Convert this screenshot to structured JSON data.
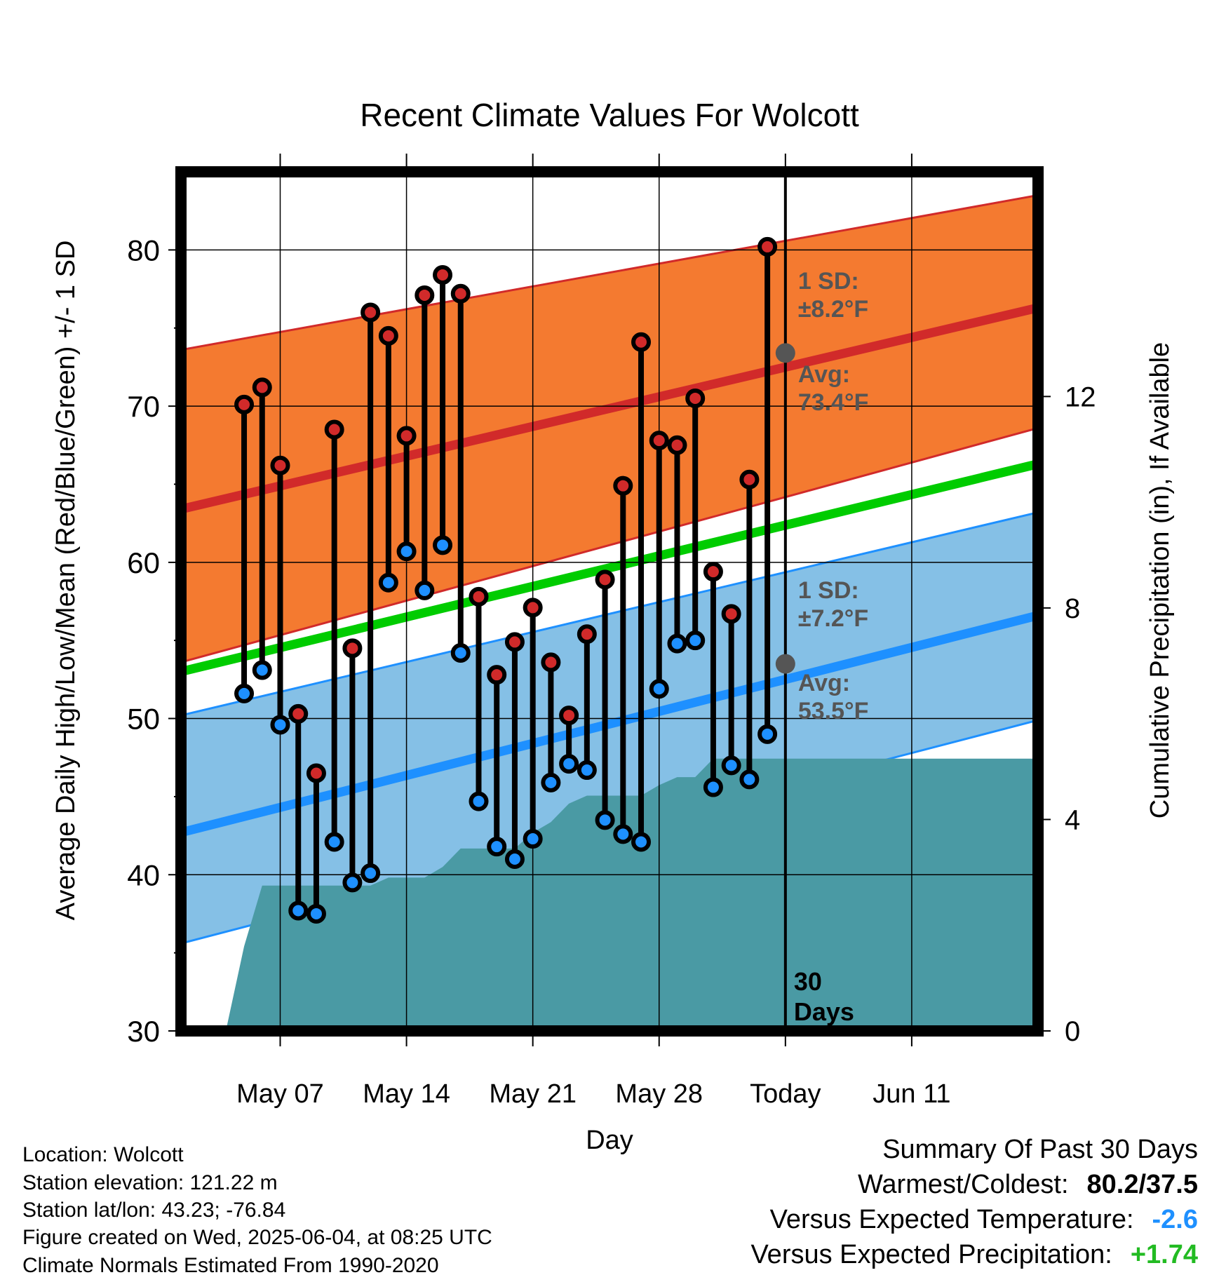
{
  "chart_data": {
    "type": "line",
    "title": "Recent Climate Values For Wolcott",
    "xlabel": "Day",
    "ylabel": "Average Daily High/Low/Mean (Red/Blue/Green) +/- 1 SD",
    "y2label": "Cumulative Precipitation (in), If Available",
    "ylim": [
      30,
      85
    ],
    "y2lim": [
      0,
      16.25
    ],
    "x_range_days": [
      -33.5,
      14
    ],
    "x_ticks": [
      {
        "day": -28,
        "label": "May 07"
      },
      {
        "day": -21,
        "label": "May 14"
      },
      {
        "day": -14,
        "label": "May 21"
      },
      {
        "day": -7,
        "label": "May 28"
      },
      {
        "day": 0,
        "label": "Today"
      },
      {
        "day": 7,
        "label": "Jun 11"
      }
    ],
    "y_ticks": [
      30,
      40,
      50,
      60,
      70,
      80
    ],
    "y2_ticks": [
      0,
      4,
      8,
      12
    ],
    "grid": true,
    "colors": {
      "high": "#d12a2a",
      "low": "#1e90ff",
      "mean": "#00cc00",
      "high_band": "#f47a30",
      "low_band": "#85c0e6",
      "precip": "#4a9aa4",
      "marker_dot": "#555555",
      "annotation": "#555555"
    },
    "series": [
      {
        "name": "Daily High",
        "x": [
          -30,
          -29,
          -28,
          -27,
          -26,
          -25,
          -24,
          -23,
          -22,
          -21,
          -20,
          -19,
          -18,
          -17,
          -16,
          -15,
          -14,
          -13,
          -12,
          -11,
          -10,
          -9,
          -8,
          -7,
          -6,
          -5,
          -4,
          -3,
          -2,
          -1
        ],
        "values": [
          70.1,
          71.2,
          66.2,
          50.3,
          46.5,
          68.5,
          54.5,
          76.0,
          74.5,
          68.1,
          77.1,
          78.4,
          77.2,
          57.8,
          52.8,
          54.9,
          57.1,
          53.6,
          50.2,
          55.4,
          58.9,
          64.9,
          74.1,
          67.8,
          67.5,
          70.5,
          59.4,
          56.7,
          65.3,
          80.2
        ]
      },
      {
        "name": "Daily Low",
        "x": [
          -30,
          -29,
          -28,
          -27,
          -26,
          -25,
          -24,
          -23,
          -22,
          -21,
          -20,
          -19,
          -18,
          -17,
          -16,
          -15,
          -14,
          -13,
          -12,
          -11,
          -10,
          -9,
          -8,
          -7,
          -6,
          -5,
          -4,
          -3,
          -2,
          -1
        ],
        "values": [
          51.6,
          53.1,
          49.6,
          37.7,
          37.5,
          42.1,
          39.5,
          40.1,
          58.7,
          60.7,
          58.2,
          61.1,
          54.2,
          44.7,
          41.8,
          41.0,
          42.3,
          45.9,
          47.1,
          46.7,
          43.5,
          42.6,
          42.1,
          51.9,
          54.8,
          55.0,
          45.6,
          47.0,
          46.1,
          49.0
        ]
      }
    ],
    "normals": {
      "high_mean": {
        "x": [
          -33.5,
          14
        ],
        "values": [
          63.4,
          76.3
        ]
      },
      "high_sd_upper": {
        "x": [
          -33.5,
          14
        ],
        "values": [
          73.6,
          83.5
        ]
      },
      "high_sd_lower": {
        "x": [
          -33.5,
          14
        ],
        "values": [
          53.6,
          68.6
        ]
      },
      "mean_line": {
        "x": [
          -33.5,
          14
        ],
        "values": [
          53.0,
          66.3
        ]
      },
      "low_mean": {
        "x": [
          -33.5,
          14
        ],
        "values": [
          42.7,
          56.6
        ]
      },
      "low_sd_upper": {
        "x": [
          -33.5,
          14
        ],
        "values": [
          50.2,
          63.2
        ]
      },
      "low_sd_lower": {
        "x": [
          -33.5,
          14
        ],
        "values": [
          35.6,
          49.9
        ]
      }
    },
    "precipitation": {
      "x": [
        -33.5,
        -32.9,
        -32,
        -31,
        -30,
        -29,
        -28,
        -27,
        -26,
        -25,
        -24,
        -23,
        -22,
        -21,
        -20,
        -19,
        -18,
        -17,
        -16,
        -15,
        -14,
        -13,
        -12,
        -11,
        -10,
        -9,
        -8,
        -7,
        -6,
        -5,
        -4,
        0,
        14
      ],
      "values": [
        0,
        0,
        0,
        0.02,
        1.6,
        2.75,
        2.75,
        2.75,
        2.75,
        2.75,
        2.75,
        2.75,
        2.9,
        2.9,
        2.9,
        3.1,
        3.45,
        3.45,
        3.45,
        3.45,
        3.75,
        3.95,
        4.3,
        4.45,
        4.45,
        4.45,
        4.45,
        4.65,
        4.8,
        4.8,
        5.15,
        5.15,
        5.15
      ]
    },
    "annotations": {
      "high_sd": [
        "1 SD:",
        "±8.2°F"
      ],
      "high_avg": [
        "Avg:",
        "73.4°F"
      ],
      "low_sd": [
        "1 SD:",
        "±7.2°F"
      ],
      "low_avg": [
        "Avg:",
        "53.5°F"
      ],
      "period": [
        "30",
        "Days"
      ],
      "today_high_avg": 73.4,
      "today_low_avg": 53.5
    }
  },
  "info": {
    "location": "Location: Wolcott",
    "elevation": "Station elevation: 121.22 m",
    "latlon": "Station lat/lon: 43.23; -76.84",
    "created": "Figure created on Wed, 2025-06-04, at 08:25 UTC",
    "normals": "Climate Normals Estimated From 1990-2020"
  },
  "summary": {
    "title": "Summary Of Past 30 Days",
    "warmest_coldest_label": "Warmest/Coldest:",
    "warmest_coldest_value": "80.2/37.5",
    "temp_label": "Versus Expected Temperature:",
    "temp_value": "-2.6",
    "temp_color": "#1e90ff",
    "precip_label": "Versus Expected Precipitation:",
    "precip_value": "+1.74",
    "precip_color": "#22bb22"
  }
}
